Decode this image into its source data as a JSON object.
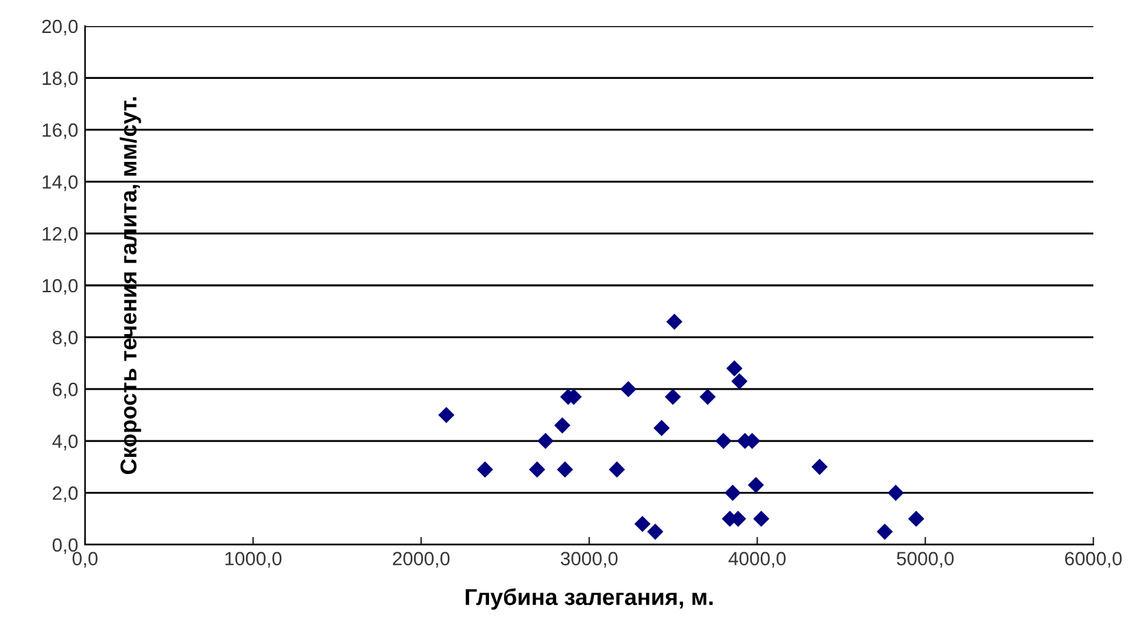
{
  "chart_data": {
    "type": "scatter",
    "xlabel": "Глубина залегания, м.",
    "ylabel": "Скорость течения галита, мм/сут.",
    "x": [
      2150,
      2380,
      2690,
      2740,
      2840,
      2856,
      2875,
      2908,
      3165,
      3233,
      3317,
      3393,
      3431,
      3498,
      3507,
      3705,
      3799,
      3837,
      3854,
      3864,
      3886,
      3894,
      3927,
      3970,
      3992,
      4024,
      4371,
      4759,
      4824,
      4946
    ],
    "series": [
      {
        "color": "#000080",
        "values": [
          5.0,
          2.9,
          2.9,
          4.0,
          4.6,
          2.9,
          5.7,
          5.7,
          2.9,
          6.0,
          0.8,
          0.5,
          4.5,
          5.7,
          8.6,
          5.7,
          4.0,
          1.0,
          2.0,
          6.8,
          1.0,
          6.3,
          4.0,
          4.0,
          2.3,
          1.0,
          3.0,
          0.5,
          2.0,
          1.0
        ]
      }
    ],
    "xlim": [
      0,
      6000
    ],
    "xticks": [
      {
        "value": 0,
        "label": "0,0"
      },
      {
        "value": 1000,
        "label": "1000,0"
      },
      {
        "value": 2000,
        "label": "2000,0"
      },
      {
        "value": 3000,
        "label": "3000,0"
      },
      {
        "value": 4000,
        "label": "4000,0"
      },
      {
        "value": 5000,
        "label": "5000,0"
      },
      {
        "value": 6000,
        "label": "6000,0"
      }
    ],
    "ylim": [
      0,
      20
    ],
    "yticks": [
      {
        "value": 0,
        "label": "0,0"
      },
      {
        "value": 2,
        "label": "2,0"
      },
      {
        "value": 4,
        "label": "4,0"
      },
      {
        "value": 6,
        "label": "6,0"
      },
      {
        "value": 8,
        "label": "8,0"
      },
      {
        "value": 10,
        "label": "10,0"
      },
      {
        "value": 12,
        "label": "12,0"
      },
      {
        "value": 14,
        "label": "14,0"
      },
      {
        "value": 16,
        "label": "16,0"
      },
      {
        "value": 18,
        "label": "18,0"
      },
      {
        "value": 20,
        "label": "20,0"
      }
    ],
    "grid": "y",
    "marker": "diamond",
    "legend": false
  }
}
